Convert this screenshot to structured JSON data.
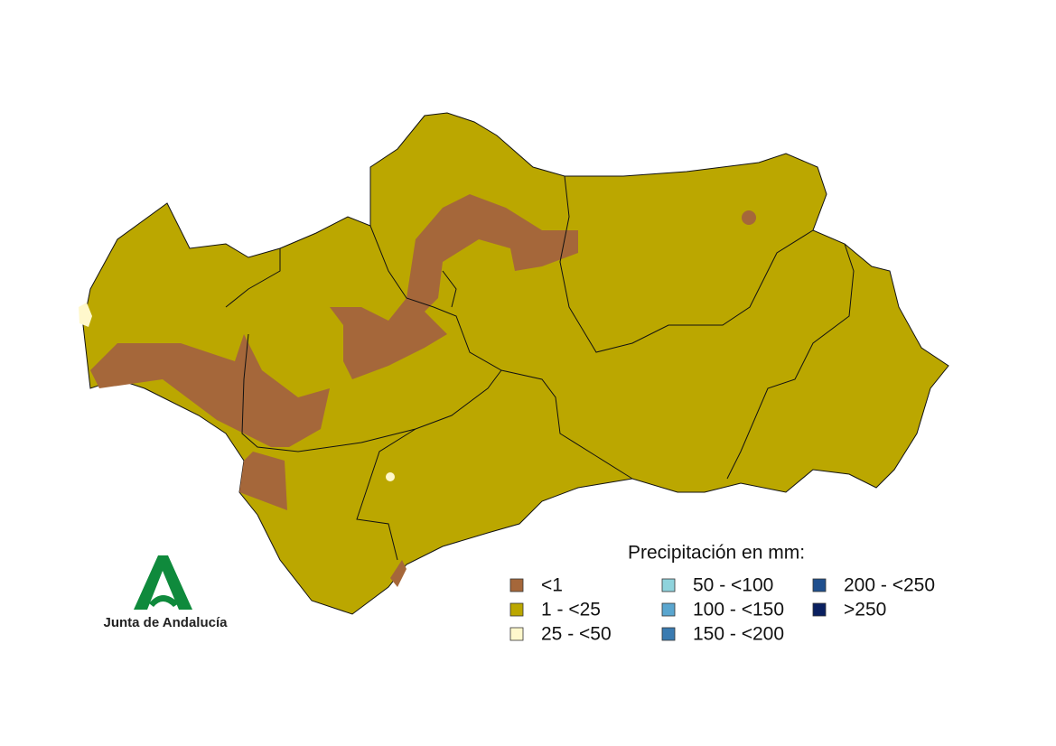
{
  "legend": {
    "title": "Precipitación en mm:",
    "items": [
      {
        "label": "<1",
        "color": "#a5673a"
      },
      {
        "label": "1 - <25",
        "color": "#bba700"
      },
      {
        "label": "25 - <50",
        "color": "#fff8cc"
      },
      {
        "label": "50 - <100",
        "color": "#8fd3dc"
      },
      {
        "label": "100 - <150",
        "color": "#5aa6cf"
      },
      {
        "label": "150 - <200",
        "color": "#3a7bb1"
      },
      {
        "label": "200 - <250",
        "color": "#1f4f8e"
      },
      {
        "label": ">250",
        "color": "#0a2060"
      }
    ]
  },
  "logo": {
    "text": "Junta de Andalucía"
  }
}
